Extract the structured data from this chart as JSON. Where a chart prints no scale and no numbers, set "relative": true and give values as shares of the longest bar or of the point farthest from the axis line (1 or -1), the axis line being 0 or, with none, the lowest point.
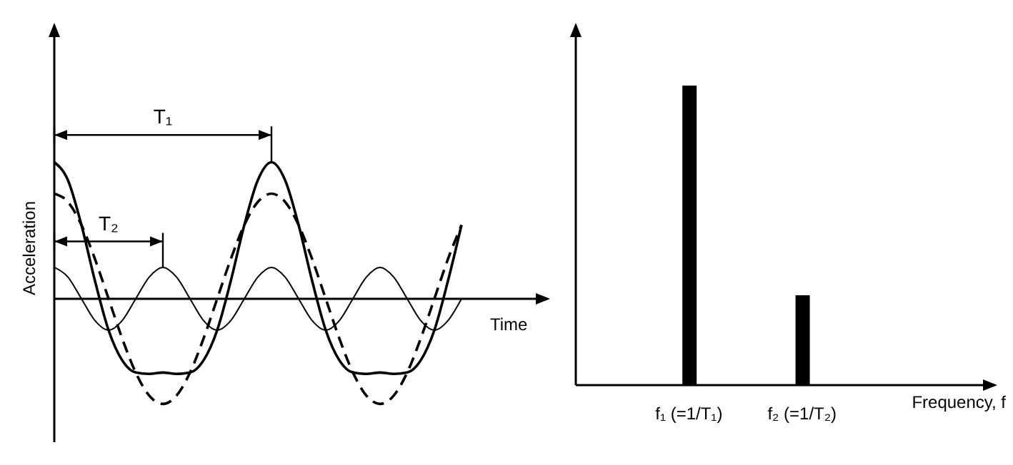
{
  "chart_data": [
    {
      "type": "line",
      "relative": true,
      "ylabel": "Acceleration",
      "xlabel": "Time",
      "annotations": [
        "T₁",
        "T₂"
      ],
      "legend": false,
      "grid": false,
      "tick_labels": false,
      "marker": "none",
      "categories": [
        null,
        null,
        null,
        null,
        null,
        null,
        null,
        null,
        null,
        null,
        null,
        null,
        null,
        null,
        null,
        null,
        null,
        null,
        null,
        null,
        null,
        null,
        null,
        null,
        null,
        null,
        null,
        null,
        null,
        null,
        null
      ],
      "series": [
        {
          "color": "#000000",
          "line_style": "solid",
          "values": [
            1.0,
            0.87,
            0.54,
            0.13,
            -0.23,
            -0.45,
            -0.54,
            -0.55,
            -0.54,
            -0.55,
            -0.54,
            -0.45,
            -0.23,
            0.13,
            0.54,
            0.87,
            1.0,
            0.87,
            0.54,
            0.13,
            -0.23,
            -0.45,
            -0.54,
            -0.55,
            -0.54,
            -0.55,
            -0.54,
            -0.45,
            -0.23,
            0.13,
            0.54
          ]
        },
        {
          "color": "#000000",
          "line_style": "dashed",
          "values": [
            0.77,
            0.71,
            0.54,
            0.29,
            0,
            -0.29,
            -0.54,
            -0.71,
            -0.77,
            -0.71,
            -0.54,
            -0.29,
            0,
            0.29,
            0.54,
            0.71,
            0.77,
            0.71,
            0.54,
            0.29,
            0,
            -0.29,
            -0.54,
            -0.71,
            -0.77,
            -0.71,
            -0.54,
            -0.29,
            0,
            0.29,
            0.54
          ]
        },
        {
          "color": "#000000",
          "line_style": "solid",
          "values": [
            0.23,
            0.16,
            0,
            -0.16,
            -0.23,
            -0.16,
            0,
            0.16,
            0.23,
            0.16,
            0,
            -0.16,
            -0.23,
            -0.16,
            0,
            0.16,
            0.23,
            0.16,
            0,
            -0.16,
            -0.23,
            -0.16,
            0,
            0.16,
            0.23,
            0.16,
            0,
            -0.16,
            -0.23,
            -0.16,
            0
          ]
        }
      ]
    },
    {
      "type": "bar",
      "relative": true,
      "xlabel": "Frequency, f",
      "legend": false,
      "grid": false,
      "tick_labels": "x",
      "categories": [
        "f₁ (=1/T₁)",
        "f₂ (=1/T₂)"
      ],
      "values": [
        1,
        0.3
      ],
      "color": "#000000"
    }
  ]
}
